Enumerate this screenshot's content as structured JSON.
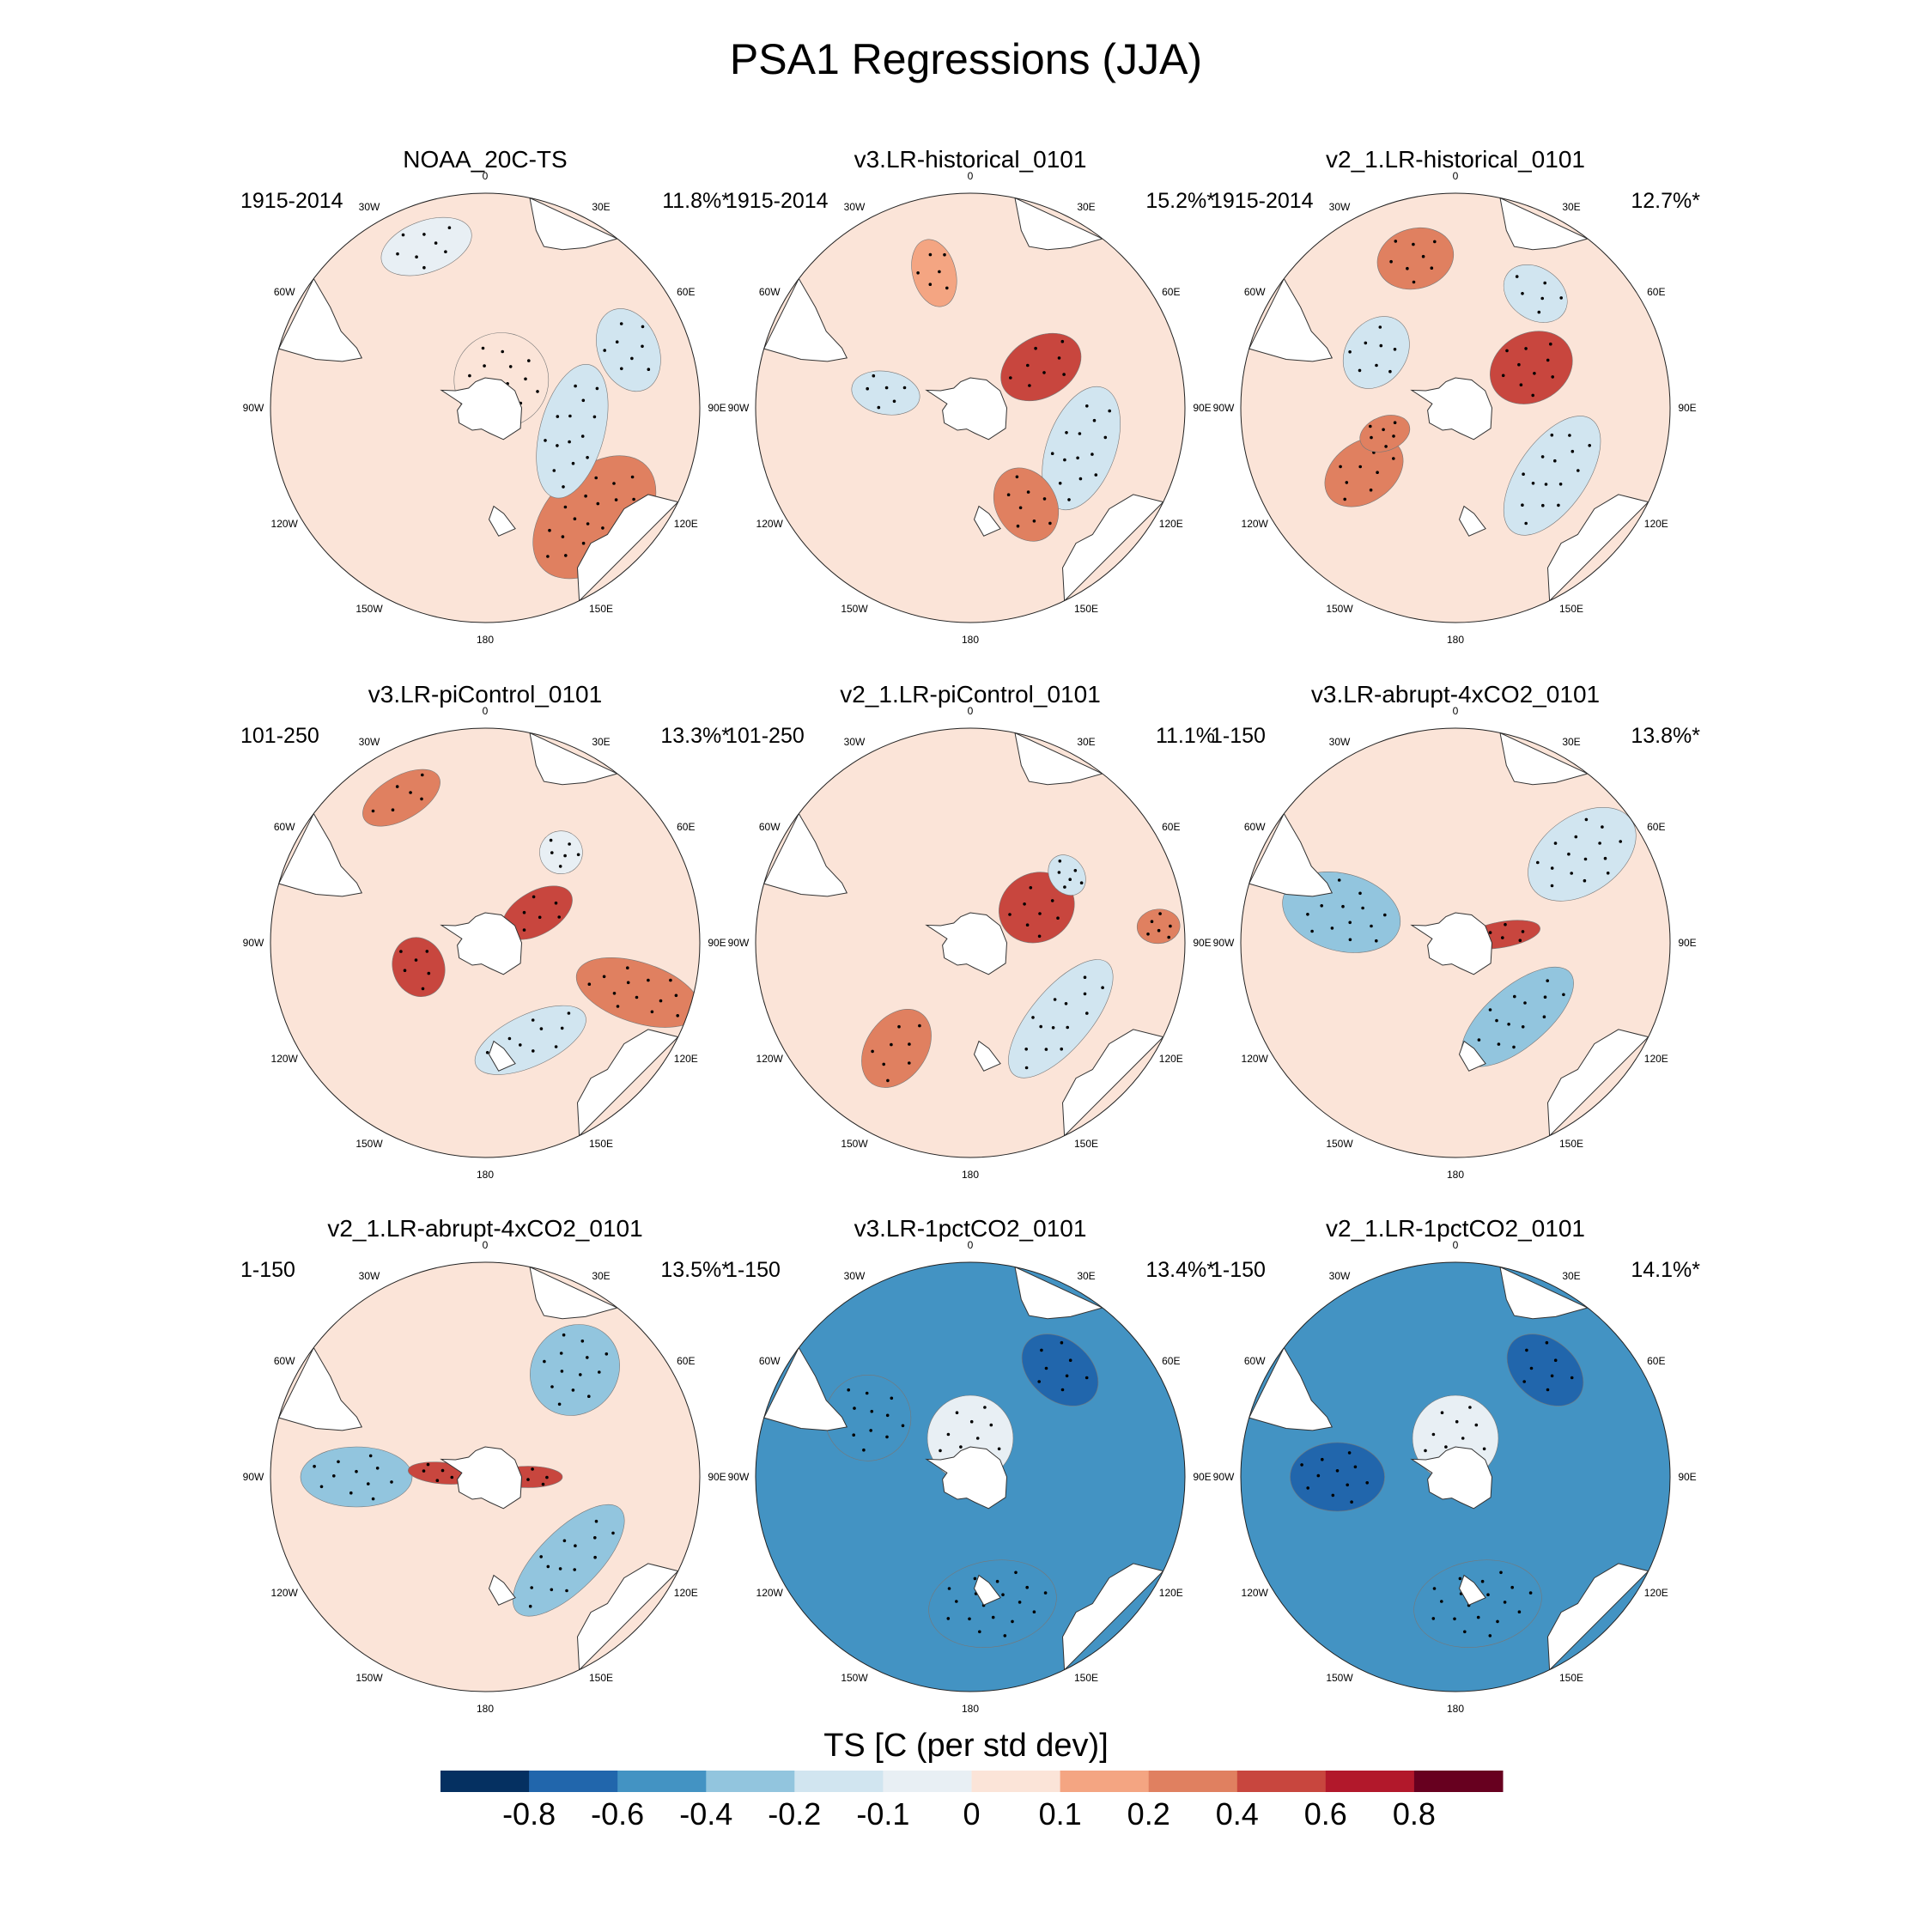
{
  "chart_data": {
    "type": "heatmap",
    "title": "PSA1 Regressions (JJA)",
    "projection": "south-polar-stereographic",
    "lon_labels": [
      "0",
      "30E",
      "60E",
      "90E",
      "120E",
      "150E",
      "180",
      "150W",
      "120W",
      "90W",
      "60W",
      "30W"
    ],
    "panels": [
      {
        "title": "NOAA_20C-TS",
        "period": "1915-2014",
        "pct": "11.8%*",
        "features": [
          {
            "lon": 135,
            "r": 0.72,
            "w": 0.34,
            "h": 0.22,
            "v": 0.3
          },
          {
            "lon": 105,
            "r": 0.42,
            "w": 0.32,
            "h": 0.15,
            "v": -0.2
          },
          {
            "lon": 68,
            "r": 0.72,
            "w": 0.2,
            "h": 0.14,
            "v": -0.2
          },
          {
            "lon": 30,
            "r": 0.15,
            "w": 0.22,
            "h": 0.22,
            "v": 0.05
          },
          {
            "lon": -20,
            "r": 0.8,
            "w": 0.22,
            "h": 0.12,
            "v": -0.1
          }
        ]
      },
      {
        "title": "v3.LR-historical_0101",
        "period": "1915-2014",
        "pct": "15.2%*",
        "features": [
          {
            "lon": 60,
            "r": 0.38,
            "w": 0.14,
            "h": 0.2,
            "v": 0.4
          },
          {
            "lon": 110,
            "r": 0.55,
            "w": 0.3,
            "h": 0.16,
            "v": -0.2
          },
          {
            "lon": 150,
            "r": 0.52,
            "w": 0.14,
            "h": 0.18,
            "v": 0.2
          },
          {
            "lon": -80,
            "r": 0.4,
            "w": 0.1,
            "h": 0.16,
            "v": -0.2
          },
          {
            "lon": -15,
            "r": 0.65,
            "w": 0.1,
            "h": 0.16,
            "v": 0.1
          }
        ]
      },
      {
        "title": "v2_1.LR-historical_0101",
        "period": "1915-2014",
        "pct": "12.7%*",
        "features": [
          {
            "lon": 62,
            "r": 0.4,
            "w": 0.16,
            "h": 0.2,
            "v": 0.4
          },
          {
            "lon": 125,
            "r": 0.55,
            "w": 0.32,
            "h": 0.16,
            "v": -0.2
          },
          {
            "lon": -125,
            "r": 0.52,
            "w": 0.14,
            "h": 0.2,
            "v": 0.2
          },
          {
            "lon": -55,
            "r": 0.45,
            "w": 0.18,
            "h": 0.14,
            "v": -0.2
          },
          {
            "lon": -15,
            "r": 0.72,
            "w": 0.18,
            "h": 0.14,
            "v": 0.2
          },
          {
            "lon": 35,
            "r": 0.65,
            "w": 0.16,
            "h": 0.12,
            "v": -0.2
          },
          {
            "lon": -110,
            "r": 0.35,
            "w": 0.08,
            "h": 0.12,
            "v": 0.2
          }
        ]
      },
      {
        "title": "v3.LR-piControl_0101",
        "period": "101-250",
        "pct": "13.3%*",
        "features": [
          {
            "lon": 60,
            "r": 0.28,
            "w": 0.1,
            "h": 0.18,
            "v": 0.4
          },
          {
            "lon": -110,
            "r": 0.33,
            "w": 0.14,
            "h": 0.12,
            "v": 0.4
          },
          {
            "lon": 108,
            "r": 0.75,
            "w": 0.14,
            "h": 0.3,
            "v": 0.3
          },
          {
            "lon": 155,
            "r": 0.5,
            "w": 0.28,
            "h": 0.12,
            "v": -0.2
          },
          {
            "lon": -30,
            "r": 0.78,
            "w": 0.2,
            "h": 0.1,
            "v": 0.3
          },
          {
            "lon": 40,
            "r": 0.55,
            "w": 0.1,
            "h": 0.1,
            "v": -0.1
          }
        ]
      },
      {
        "title": "v2_1.LR-piControl_0101",
        "period": "101-250",
        "pct": "11.1%",
        "features": [
          {
            "lon": 62,
            "r": 0.35,
            "w": 0.16,
            "h": 0.18,
            "v": 0.4
          },
          {
            "lon": 130,
            "r": 0.55,
            "w": 0.34,
            "h": 0.14,
            "v": -0.2
          },
          {
            "lon": -145,
            "r": 0.6,
            "w": 0.14,
            "h": 0.2,
            "v": 0.3
          },
          {
            "lon": 85,
            "r": 0.88,
            "w": 0.08,
            "h": 0.1,
            "v": 0.3
          },
          {
            "lon": 55,
            "r": 0.55,
            "w": 0.1,
            "h": 0.08,
            "v": -0.2
          }
        ]
      },
      {
        "title": "v3.LR-abrupt-4xCO2_0101",
        "period": "1-150",
        "pct": "13.8%*",
        "features": [
          {
            "lon": 140,
            "r": 0.45,
            "w": 0.32,
            "h": 0.14,
            "v": -0.3
          },
          {
            "lon": -75,
            "r": 0.55,
            "w": 0.18,
            "h": 0.28,
            "v": -0.3
          },
          {
            "lon": 55,
            "r": 0.72,
            "w": 0.18,
            "h": 0.28,
            "v": -0.2
          },
          {
            "lon": 80,
            "r": 0.22,
            "w": 0.06,
            "h": 0.18,
            "v": 0.4
          }
        ]
      },
      {
        "title": "v2_1.LR-abrupt-4xCO2_0101",
        "period": "1-150",
        "pct": "13.5%*",
        "features": [
          {
            "lon": 135,
            "r": 0.55,
            "w": 0.34,
            "h": 0.14,
            "v": -0.3
          },
          {
            "lon": -90,
            "r": 0.6,
            "w": 0.14,
            "h": 0.26,
            "v": -0.3
          },
          {
            "lon": 40,
            "r": 0.65,
            "w": 0.2,
            "h": 0.22,
            "v": -0.3
          },
          {
            "lon": 90,
            "r": 0.2,
            "w": 0.05,
            "h": 0.16,
            "v": 0.4
          },
          {
            "lon": -85,
            "r": 0.2,
            "w": 0.05,
            "h": 0.16,
            "v": 0.4
          }
        ]
      },
      {
        "title": "v3.LR-1pctCO2_0101",
        "period": "1-150",
        "pct": "13.4%*",
        "background": -0.5,
        "features": [
          {
            "lon": 40,
            "r": 0.65,
            "w": 0.2,
            "h": 0.14,
            "v": -0.8
          },
          {
            "lon": -60,
            "r": 0.55,
            "w": 0.2,
            "h": 0.2,
            "v": -0.6
          },
          {
            "lon": 170,
            "r": 0.6,
            "w": 0.3,
            "h": 0.2,
            "v": -0.6
          },
          {
            "lon": 0,
            "r": 0.18,
            "w": 0.2,
            "h": 0.2,
            "v": -0.1
          }
        ]
      },
      {
        "title": "v2_1.LR-1pctCO2_0101",
        "period": "1-150",
        "pct": "14.1%*",
        "background": -0.5,
        "features": [
          {
            "lon": 40,
            "r": 0.65,
            "w": 0.2,
            "h": 0.14,
            "v": -0.7
          },
          {
            "lon": -90,
            "r": 0.55,
            "w": 0.16,
            "h": 0.22,
            "v": -0.7
          },
          {
            "lon": 170,
            "r": 0.6,
            "w": 0.3,
            "h": 0.2,
            "v": -0.6
          },
          {
            "lon": 0,
            "r": 0.18,
            "w": 0.2,
            "h": 0.2,
            "v": -0.1
          }
        ]
      }
    ],
    "colorbar": {
      "label": "TS [C (per std dev)]",
      "levels": [
        -0.8,
        -0.6,
        -0.4,
        -0.2,
        -0.1,
        0,
        0.1,
        0.2,
        0.4,
        0.6,
        0.8
      ],
      "tick_labels": [
        "-0.8",
        "-0.6",
        "-0.4",
        "-0.2",
        "-0.1",
        "0",
        "0.1",
        "0.2",
        "0.4",
        "0.6",
        "0.8"
      ],
      "colors": [
        "#053061",
        "#2166ac",
        "#4393c3",
        "#92c5de",
        "#d1e5f0",
        "#e8eff4",
        "#fbe4d8",
        "#f4a582",
        "#e08060",
        "#c8463e",
        "#b2182b",
        "#67001f"
      ]
    }
  }
}
